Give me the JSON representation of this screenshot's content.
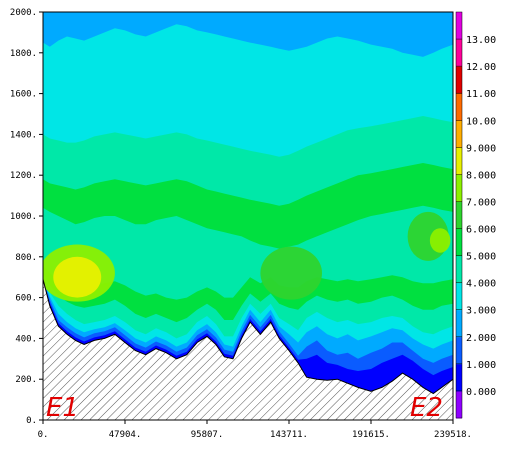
{
  "chart_data": {
    "type": "heatmap",
    "title": "",
    "xlabel": "",
    "ylabel": "",
    "xlim": [
      0,
      239518
    ],
    "ylim": [
      0,
      2000
    ],
    "x_ticks": [
      "0.",
      "47904.",
      "95807.",
      "143711.",
      "191615.",
      "239518."
    ],
    "y_ticks": [
      "0.",
      "200.",
      "400.",
      "600.",
      "800.",
      "1000.",
      "1200.",
      "1400.",
      "1600.",
      "1800.",
      "2000."
    ],
    "annotations": [
      {
        "text": "E1",
        "x": 0,
        "y": 0,
        "color": "#e00000"
      },
      {
        "text": "E2",
        "x": 239518,
        "y": 0,
        "color": "#e00000"
      }
    ],
    "colorbar": {
      "levels": [
        "0.000",
        "1.000",
        "2.000",
        "3.000",
        "4.000",
        "5.000",
        "6.000",
        "7.000",
        "8.000",
        "9.000",
        "10.00",
        "11.00",
        "12.00",
        "13.00"
      ],
      "colors": [
        "#8f00ff",
        "#0000ff",
        "#0a5cff",
        "#00aaff",
        "#00e6e6",
        "#00e8a8",
        "#00e040",
        "#2ed42e",
        "#8cf000",
        "#e8f000",
        "#ffae00",
        "#ff6a00",
        "#e00000",
        "#ff0099",
        "#e000e0"
      ]
    },
    "terrain": {
      "x": [
        0,
        4000,
        9000,
        14000,
        19000,
        24000,
        30000,
        36000,
        42000,
        47904,
        54000,
        60000,
        66000,
        72000,
        78000,
        84000,
        90000,
        95807,
        101000,
        106000,
        111000,
        116000,
        121000,
        127000,
        133000,
        138000,
        143711,
        149000,
        154000,
        160000,
        166000,
        172000,
        178000,
        184000,
        191615,
        198000,
        204000,
        210000,
        216000,
        222000,
        228000,
        233000,
        239518
      ],
      "height": [
        690,
        560,
        460,
        420,
        390,
        370,
        390,
        400,
        420,
        380,
        340,
        320,
        350,
        330,
        300,
        320,
        380,
        410,
        370,
        310,
        300,
        400,
        480,
        420,
        480,
        400,
        340,
        280,
        210,
        200,
        195,
        200,
        180,
        160,
        140,
        160,
        190,
        230,
        200,
        160,
        130,
        160,
        200
      ]
    },
    "contours": [
      {
        "level": 1,
        "height": [
          690,
          575,
          475,
          435,
          405,
          385,
          405,
          415,
          435,
          395,
          355,
          335,
          365,
          345,
          315,
          335,
          395,
          425,
          385,
          325,
          315,
          415,
          495,
          435,
          495,
          415,
          355,
          295,
          300,
          320,
          280,
          270,
          250,
          240,
          250,
          280,
          300,
          320,
          290,
          250,
          220,
          240,
          260
        ]
      },
      {
        "level": 2,
        "height": [
          690,
          590,
          490,
          455,
          425,
          405,
          425,
          435,
          455,
          415,
          375,
          355,
          385,
          365,
          335,
          355,
          415,
          445,
          405,
          345,
          335,
          435,
          515,
          455,
          515,
          435,
          375,
          315,
          360,
          390,
          340,
          320,
          330,
          300,
          330,
          350,
          380,
          380,
          340,
          300,
          280,
          300,
          320
        ]
      },
      {
        "level": 3,
        "height": [
          690,
          605,
          520,
          480,
          450,
          430,
          445,
          455,
          475,
          440,
          400,
          380,
          410,
          390,
          360,
          380,
          440,
          470,
          430,
          370,
          360,
          460,
          540,
          480,
          540,
          460,
          420,
          380,
          430,
          460,
          420,
          400,
          420,
          390,
          410,
          430,
          450,
          440,
          400,
          370,
          350,
          370,
          390
        ]
      },
      {
        "level": 4,
        "height": [
          690,
          625,
          560,
          520,
          490,
          470,
          480,
          490,
          510,
          480,
          440,
          420,
          450,
          430,
          400,
          420,
          480,
          510,
          470,
          410,
          410,
          500,
          570,
          520,
          570,
          500,
          470,
          440,
          500,
          530,
          500,
          480,
          490,
          470,
          480,
          500,
          510,
          500,
          460,
          430,
          420,
          440,
          460
        ]
      },
      {
        "level": 5,
        "height": [
          720,
          660,
          610,
          580,
          560,
          550,
          560,
          570,
          590,
          560,
          520,
          500,
          520,
          500,
          480,
          500,
          540,
          570,
          540,
          490,
          490,
          560,
          620,
          580,
          620,
          570,
          550,
          540,
          580,
          610,
          590,
          580,
          590,
          570,
          580,
          600,
          610,
          590,
          560,
          540,
          540,
          560,
          570
        ]
      },
      {
        "level": 6,
        "height": [
          760,
          720,
          680,
          660,
          650,
          650,
          660,
          670,
          680,
          660,
          630,
          610,
          620,
          600,
          590,
          600,
          630,
          650,
          630,
          600,
          600,
          650,
          700,
          670,
          700,
          660,
          650,
          650,
          680,
          700,
          690,
          680,
          690,
          680,
          690,
          700,
          710,
          700,
          680,
          670,
          670,
          680,
          690
        ]
      }
    ],
    "bands": [
      {
        "level": 6,
        "height": [
          1040,
          1020,
          1000,
          980,
          960,
          970,
          990,
          1000,
          1000,
          980,
          960,
          960,
          980,
          990,
          1000,
          980,
          960,
          940,
          930,
          920,
          910,
          900,
          880,
          860,
          850,
          840,
          850,
          860,
          880,
          900,
          920,
          940,
          960,
          980,
          1000,
          1010,
          1020,
          1030,
          1040,
          1050,
          1040,
          1030,
          1020
        ]
      },
      {
        "level": 5,
        "height": [
          1180,
          1160,
          1150,
          1140,
          1130,
          1140,
          1160,
          1170,
          1180,
          1170,
          1160,
          1150,
          1160,
          1170,
          1180,
          1170,
          1150,
          1130,
          1120,
          1110,
          1100,
          1090,
          1080,
          1070,
          1060,
          1050,
          1060,
          1080,
          1100,
          1120,
          1140,
          1160,
          1180,
          1200,
          1210,
          1220,
          1230,
          1240,
          1250,
          1260,
          1250,
          1240,
          1230
        ]
      },
      {
        "level": 4,
        "height": [
          1400,
          1380,
          1370,
          1360,
          1360,
          1370,
          1390,
          1400,
          1410,
          1400,
          1390,
          1380,
          1390,
          1400,
          1410,
          1400,
          1380,
          1370,
          1360,
          1350,
          1340,
          1330,
          1320,
          1310,
          1300,
          1290,
          1300,
          1320,
          1340,
          1360,
          1380,
          1400,
          1420,
          1430,
          1440,
          1450,
          1460,
          1470,
          1480,
          1490,
          1480,
          1470,
          1460
        ]
      },
      {
        "level": 3,
        "height": [
          1850,
          1830,
          1860,
          1880,
          1870,
          1860,
          1880,
          1900,
          1920,
          1910,
          1890,
          1880,
          1900,
          1920,
          1940,
          1930,
          1910,
          1900,
          1890,
          1880,
          1870,
          1860,
          1850,
          1840,
          1830,
          1820,
          1810,
          1820,
          1830,
          1850,
          1870,
          1880,
          1870,
          1860,
          1840,
          1830,
          1820,
          1800,
          1790,
          1780,
          1800,
          1820,
          1840
        ]
      }
    ],
    "maxima": [
      {
        "level": 8,
        "x": 20000,
        "y": 720,
        "rx": 22000,
        "ry": 140
      },
      {
        "level": 9,
        "x": 20000,
        "y": 700,
        "rx": 14000,
        "ry": 100
      },
      {
        "level": 7,
        "x": 145000,
        "y": 720,
        "rx": 18000,
        "ry": 130
      },
      {
        "level": 7,
        "x": 225000,
        "y": 900,
        "rx": 12000,
        "ry": 120
      },
      {
        "level": 8,
        "x": 232000,
        "y": 880,
        "rx": 6000,
        "ry": 60
      }
    ]
  }
}
